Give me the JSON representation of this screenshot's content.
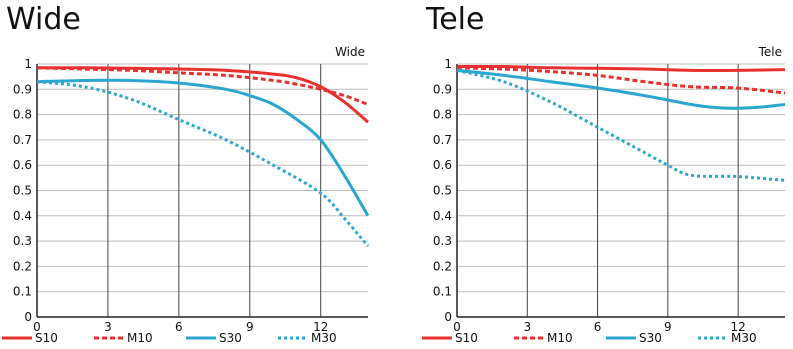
{
  "chart_data": [
    {
      "type": "line",
      "title": "Wide",
      "subtitle": "Wide",
      "xlim": [
        0,
        14
      ],
      "ylim": [
        0,
        1
      ],
      "x_ticks": [
        0,
        3,
        6,
        9,
        12
      ],
      "y_ticks": [
        0,
        0.1,
        0.2,
        0.3,
        0.4,
        0.5,
        0.6,
        0.7,
        0.8,
        0.9,
        1
      ],
      "x_tick_labels": [
        "0",
        "3",
        "6",
        "9",
        "12"
      ],
      "y_tick_labels": [
        "0",
        "0.1",
        "0.2",
        "0.3",
        "0.4",
        "0.5",
        "0.6",
        "0.7",
        "0.8",
        "0.9",
        "1"
      ],
      "grid": true,
      "legend_position": "bottom",
      "series": [
        {
          "name": "S10",
          "color": "#e8312f",
          "style": "solid",
          "x": [
            0,
            2,
            4,
            6,
            8,
            10,
            11,
            12,
            13,
            14
          ],
          "y": [
            0.985,
            0.985,
            0.983,
            0.98,
            0.975,
            0.96,
            0.945,
            0.91,
            0.85,
            0.77
          ]
        },
        {
          "name": "M10",
          "color": "#e8312f",
          "style": "dashed",
          "x": [
            0,
            2,
            4,
            6,
            8,
            10,
            11,
            12,
            13,
            14
          ],
          "y": [
            0.985,
            0.98,
            0.975,
            0.965,
            0.955,
            0.935,
            0.92,
            0.9,
            0.875,
            0.84
          ]
        },
        {
          "name": "S30",
          "color": "#2aa6d0",
          "style": "solid",
          "x": [
            0,
            2,
            4,
            6,
            8,
            9,
            10,
            11,
            12,
            13,
            14
          ],
          "y": [
            0.93,
            0.935,
            0.935,
            0.925,
            0.9,
            0.875,
            0.84,
            0.78,
            0.7,
            0.56,
            0.4
          ]
        },
        {
          "name": "M30",
          "color": "#2aa6d0",
          "style": "dotted",
          "x": [
            0,
            2,
            4,
            6,
            8,
            10,
            12,
            13,
            14
          ],
          "y": [
            0.93,
            0.91,
            0.86,
            0.78,
            0.7,
            0.6,
            0.49,
            0.39,
            0.28
          ]
        }
      ]
    },
    {
      "type": "line",
      "title": "Tele",
      "subtitle": "Tele",
      "xlim": [
        0,
        14
      ],
      "ylim": [
        0,
        1
      ],
      "x_ticks": [
        0,
        3,
        6,
        9,
        12
      ],
      "y_ticks": [
        0,
        0.1,
        0.2,
        0.3,
        0.4,
        0.5,
        0.6,
        0.7,
        0.8,
        0.9,
        1
      ],
      "x_tick_labels": [
        "0",
        "3",
        "6",
        "9",
        "12"
      ],
      "y_tick_labels": [
        "0",
        "0.1",
        "0.2",
        "0.3",
        "0.4",
        "0.5",
        "0.6",
        "0.7",
        "0.8",
        "0.9",
        "1"
      ],
      "grid": true,
      "legend_position": "bottom",
      "series": [
        {
          "name": "S10",
          "color": "#e8312f",
          "style": "solid",
          "x": [
            0,
            2,
            4,
            6,
            8,
            10,
            12,
            14
          ],
          "y": [
            0.99,
            0.99,
            0.985,
            0.983,
            0.98,
            0.975,
            0.975,
            0.978
          ]
        },
        {
          "name": "M10",
          "color": "#e8312f",
          "style": "dashed",
          "x": [
            0,
            2,
            4,
            6,
            8,
            10,
            12,
            14
          ],
          "y": [
            0.985,
            0.98,
            0.97,
            0.955,
            0.93,
            0.91,
            0.905,
            0.885
          ]
        },
        {
          "name": "S30",
          "color": "#2aa6d0",
          "style": "solid",
          "x": [
            0,
            2,
            4,
            6,
            8,
            10,
            11,
            12,
            13,
            14
          ],
          "y": [
            0.975,
            0.955,
            0.93,
            0.905,
            0.875,
            0.84,
            0.828,
            0.825,
            0.83,
            0.84
          ]
        },
        {
          "name": "M30",
          "color": "#2aa6d0",
          "style": "dotted",
          "x": [
            0,
            2,
            4,
            6,
            8,
            9,
            10,
            12,
            14
          ],
          "y": [
            0.975,
            0.93,
            0.85,
            0.75,
            0.65,
            0.6,
            0.56,
            0.555,
            0.54
          ]
        }
      ]
    }
  ]
}
